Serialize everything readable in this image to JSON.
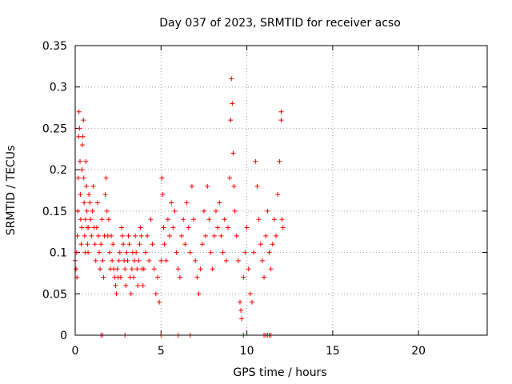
{
  "chart_data": {
    "type": "scatter",
    "title": "Day 037 of 2023, SRMTID for receiver acso",
    "xlabel": "GPS time / hours",
    "ylabel": "SRMTID / TECUs",
    "xlim": [
      0,
      24
    ],
    "ylim": [
      0,
      0.35
    ],
    "xticks": [
      0,
      5,
      10,
      15,
      20
    ],
    "xtick_labels": [
      "0",
      "5",
      "10",
      "15",
      "20"
    ],
    "yticks": [
      0,
      0.05,
      0.1,
      0.15,
      0.2,
      0.25,
      0.3,
      0.35
    ],
    "ytick_labels": [
      "0",
      "0.05",
      "0.1",
      "0.15",
      "0.2",
      "0.25",
      "0.3",
      "0.35"
    ],
    "grid": true,
    "marker": "+",
    "color": "#ff0000",
    "series": [
      {
        "name": "SRMTID",
        "points": [
          [
            0.0,
            0.09
          ],
          [
            0.05,
            0.08
          ],
          [
            0.08,
            0.1
          ],
          [
            0.1,
            0.07
          ],
          [
            0.12,
            0.12
          ],
          [
            0.15,
            0.15
          ],
          [
            0.18,
            0.19
          ],
          [
            0.2,
            0.24
          ],
          [
            0.22,
            0.27
          ],
          [
            0.25,
            0.25
          ],
          [
            0.28,
            0.21
          ],
          [
            0.3,
            0.17
          ],
          [
            0.32,
            0.14
          ],
          [
            0.35,
            0.11
          ],
          [
            0.38,
            0.13
          ],
          [
            0.4,
            0.2
          ],
          [
            0.42,
            0.23
          ],
          [
            0.45,
            0.24
          ],
          [
            0.48,
            0.26
          ],
          [
            0.5,
            0.19
          ],
          [
            0.52,
            0.16
          ],
          [
            0.55,
            0.12
          ],
          [
            0.58,
            0.1
          ],
          [
            0.6,
            0.14
          ],
          [
            0.62,
            0.21
          ],
          [
            0.65,
            0.18
          ],
          [
            0.68,
            0.15
          ],
          [
            0.7,
            0.13
          ],
          [
            0.72,
            0.11
          ],
          [
            0.75,
            0.1
          ],
          [
            0.78,
            0.13
          ],
          [
            0.8,
            0.17
          ],
          [
            0.85,
            0.16
          ],
          [
            0.9,
            0.14
          ],
          [
            0.95,
            0.12
          ],
          [
            1.0,
            0.15
          ],
          [
            1.05,
            0.18
          ],
          [
            1.1,
            0.13
          ],
          [
            1.15,
            0.11
          ],
          [
            1.2,
            0.09
          ],
          [
            1.25,
            0.13
          ],
          [
            1.3,
            0.16
          ],
          [
            1.35,
            0.12
          ],
          [
            1.4,
            0.1
          ],
          [
            1.45,
            0.08
          ],
          [
            1.5,
            0.11
          ],
          [
            1.55,
            0.14
          ],
          [
            1.6,
            0.09
          ],
          [
            1.65,
            0.07
          ],
          [
            1.7,
            0.12
          ],
          [
            1.75,
            0.17
          ],
          [
            1.8,
            0.19
          ],
          [
            1.85,
            0.15
          ],
          [
            1.9,
            0.12
          ],
          [
            1.95,
            0.14
          ],
          [
            2.0,
            0.1
          ],
          [
            2.05,
            0.08
          ],
          [
            2.1,
            0.12
          ],
          [
            2.15,
            0.09
          ],
          [
            2.2,
            0.11
          ],
          [
            2.25,
            0.08
          ],
          [
            2.3,
            0.07
          ],
          [
            2.35,
            0.06
          ],
          [
            2.4,
            0.05
          ],
          [
            2.45,
            0.08
          ],
          [
            2.5,
            0.07
          ],
          [
            2.55,
            0.09
          ],
          [
            2.6,
            0.1
          ],
          [
            2.65,
            0.07
          ],
          [
            2.7,
            0.13
          ],
          [
            2.75,
            0.12
          ],
          [
            2.8,
            0.11
          ],
          [
            2.85,
            0.09
          ],
          [
            2.9,
            0.08
          ],
          [
            2.95,
            0.06
          ],
          [
            3.0,
            0.1
          ],
          [
            3.05,
            0.09
          ],
          [
            3.1,
            0.12
          ],
          [
            3.15,
            0.11
          ],
          [
            3.2,
            0.07
          ],
          [
            3.25,
            0.05
          ],
          [
            3.3,
            0.08
          ],
          [
            3.35,
            0.1
          ],
          [
            3.4,
            0.07
          ],
          [
            3.45,
            0.09
          ],
          [
            3.5,
            0.12
          ],
          [
            3.55,
            0.1
          ],
          [
            3.6,
            0.08
          ],
          [
            3.65,
            0.06
          ],
          [
            3.7,
            0.09
          ],
          [
            3.75,
            0.11
          ],
          [
            3.8,
            0.13
          ],
          [
            3.85,
            0.12
          ],
          [
            3.9,
            0.08
          ],
          [
            3.95,
            0.06
          ],
          [
            4.0,
            0.08
          ],
          [
            4.1,
            0.1
          ],
          [
            4.2,
            0.12
          ],
          [
            4.3,
            0.09
          ],
          [
            4.4,
            0.14
          ],
          [
            4.5,
            0.11
          ],
          [
            4.6,
            0.08
          ],
          [
            4.7,
            0.05
          ],
          [
            4.8,
            0.07
          ],
          [
            4.9,
            0.04
          ],
          [
            5.0,
            0.09
          ],
          [
            5.05,
            0.19
          ],
          [
            5.1,
            0.17
          ],
          [
            5.15,
            0.13
          ],
          [
            5.2,
            0.11
          ],
          [
            5.3,
            0.09
          ],
          [
            5.4,
            0.14
          ],
          [
            5.5,
            0.12
          ],
          [
            5.6,
            0.16
          ],
          [
            5.7,
            0.13
          ],
          [
            5.8,
            0.15
          ],
          [
            5.9,
            0.1
          ],
          [
            6.0,
            0.08
          ],
          [
            6.1,
            0.07
          ],
          [
            6.2,
            0.12
          ],
          [
            6.3,
            0.14
          ],
          [
            6.4,
            0.11
          ],
          [
            6.5,
            0.16
          ],
          [
            6.6,
            0.13
          ],
          [
            6.7,
            0.1
          ],
          [
            6.8,
            0.18
          ],
          [
            6.9,
            0.14
          ],
          [
            7.0,
            0.09
          ],
          [
            7.1,
            0.07
          ],
          [
            7.2,
            0.05
          ],
          [
            7.3,
            0.08
          ],
          [
            7.4,
            0.11
          ],
          [
            7.5,
            0.15
          ],
          [
            7.6,
            0.12
          ],
          [
            7.7,
            0.18
          ],
          [
            7.8,
            0.14
          ],
          [
            7.9,
            0.1
          ],
          [
            8.0,
            0.08
          ],
          [
            8.1,
            0.12
          ],
          [
            8.2,
            0.15
          ],
          [
            8.3,
            0.13
          ],
          [
            8.4,
            0.16
          ],
          [
            8.5,
            0.12
          ],
          [
            8.6,
            0.1
          ],
          [
            8.7,
            0.14
          ],
          [
            8.8,
            0.09
          ],
          [
            8.9,
            0.13
          ],
          [
            9.0,
            0.19
          ],
          [
            9.05,
            0.26
          ],
          [
            9.1,
            0.31
          ],
          [
            9.15,
            0.28
          ],
          [
            9.2,
            0.22
          ],
          [
            9.25,
            0.18
          ],
          [
            9.3,
            0.15
          ],
          [
            9.4,
            0.12
          ],
          [
            9.5,
            0.09
          ],
          [
            9.6,
            0.04
          ],
          [
            9.65,
            0.03
          ],
          [
            9.7,
            0.02
          ],
          [
            9.8,
            0.07
          ],
          [
            9.9,
            0.1
          ],
          [
            10.0,
            0.13
          ],
          [
            10.1,
            0.08
          ],
          [
            10.2,
            0.05
          ],
          [
            10.3,
            0.04
          ],
          [
            10.4,
            0.1
          ],
          [
            10.5,
            0.21
          ],
          [
            10.6,
            0.18
          ],
          [
            10.7,
            0.14
          ],
          [
            10.8,
            0.11
          ],
          [
            10.9,
            0.09
          ],
          [
            11.0,
            0.07
          ],
          [
            11.1,
            0.12
          ],
          [
            11.2,
            0.15
          ],
          [
            11.3,
            0.1
          ],
          [
            11.4,
            0.08
          ],
          [
            11.5,
            0.11
          ],
          [
            11.6,
            0.14
          ],
          [
            11.7,
            0.12
          ],
          [
            11.8,
            0.17
          ],
          [
            11.9,
            0.21
          ],
          [
            12.0,
            0.26
          ],
          [
            12.0,
            0.27
          ],
          [
            12.05,
            0.14
          ],
          [
            12.1,
            0.13
          ]
        ]
      }
    ],
    "zero_markers_x": [
      1.5,
      1.6,
      2.9,
      5.0,
      6.0,
      6.7,
      9.8,
      11.0,
      11.1,
      11.2,
      11.3,
      11.4
    ]
  }
}
